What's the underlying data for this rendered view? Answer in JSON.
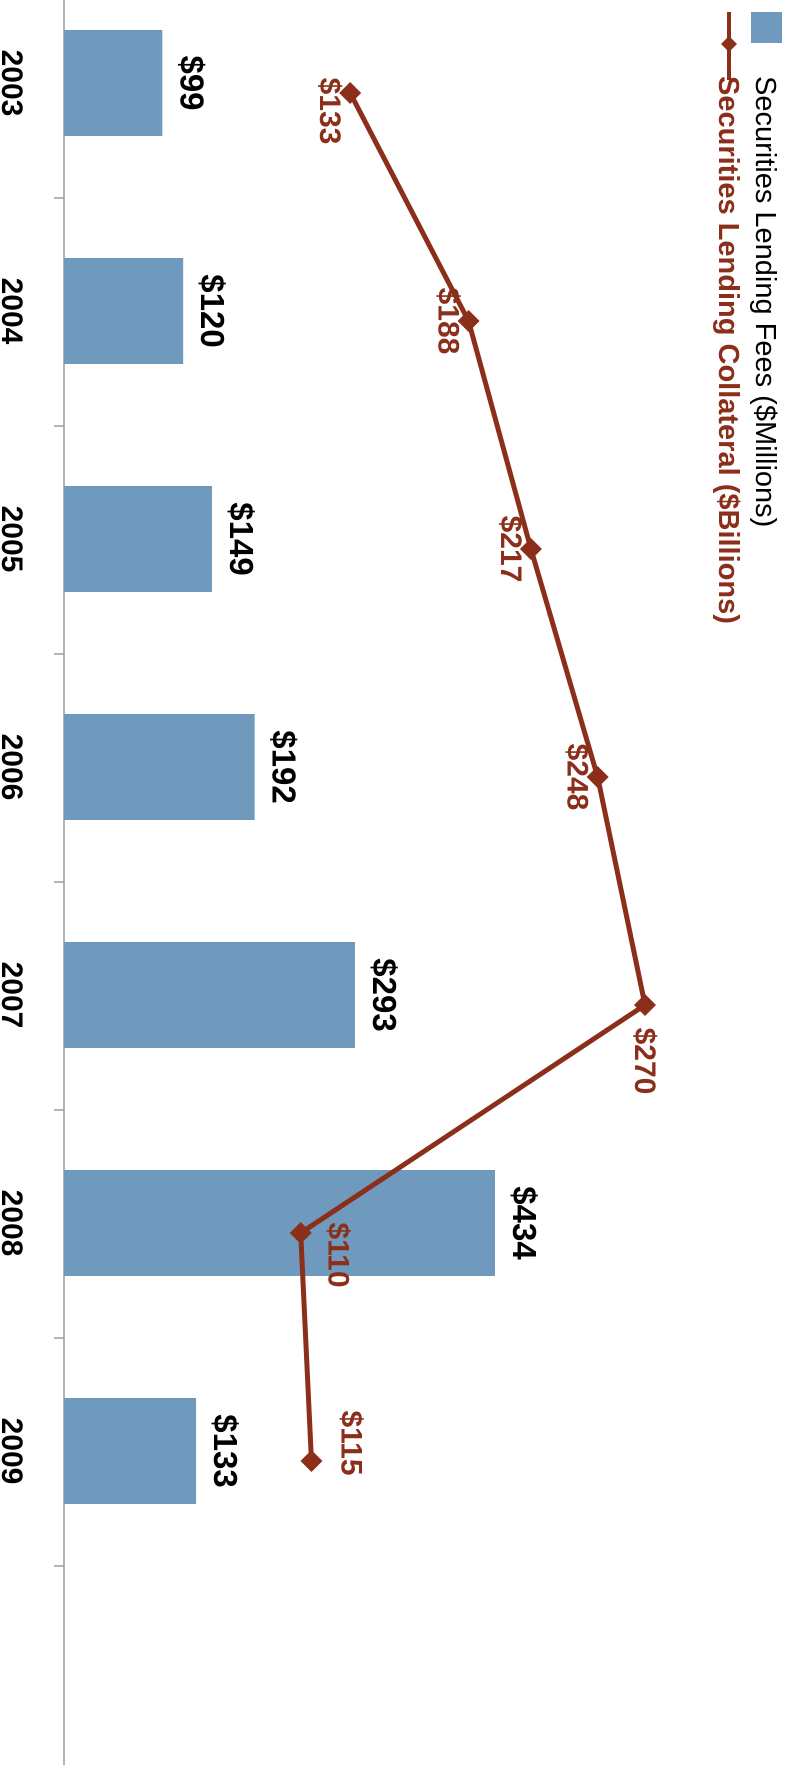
{
  "chart_data": {
    "type": "bar",
    "orientation": "rotated-90-clockwise",
    "categories": [
      "2003",
      "2004",
      "2005",
      "2006",
      "2007",
      "2008",
      "2009"
    ],
    "series": [
      {
        "name": "Securities Lending Fees ($Millions)",
        "type": "bar",
        "values": [
          99,
          120,
          149,
          192,
          293,
          434,
          133
        ],
        "labels": [
          "$99",
          "$120",
          "$149",
          "$192",
          "$293",
          "$434",
          "$133"
        ],
        "color": "#6f9abd"
      },
      {
        "name": "Securities Lending Collateral ($Billions)",
        "type": "line",
        "marker": "diamond",
        "values": [
          133,
          188,
          217,
          248,
          270,
          110,
          115
        ],
        "labels": [
          "$133",
          "$188",
          "$217",
          "$248",
          "$270",
          "$110",
          "$115"
        ],
        "color": "#8b2e1a"
      }
    ],
    "bar_axis_range": [
      0,
      640
    ],
    "line_axis_range": [
      0,
      304
    ],
    "grid": false,
    "legend_position": "top"
  }
}
